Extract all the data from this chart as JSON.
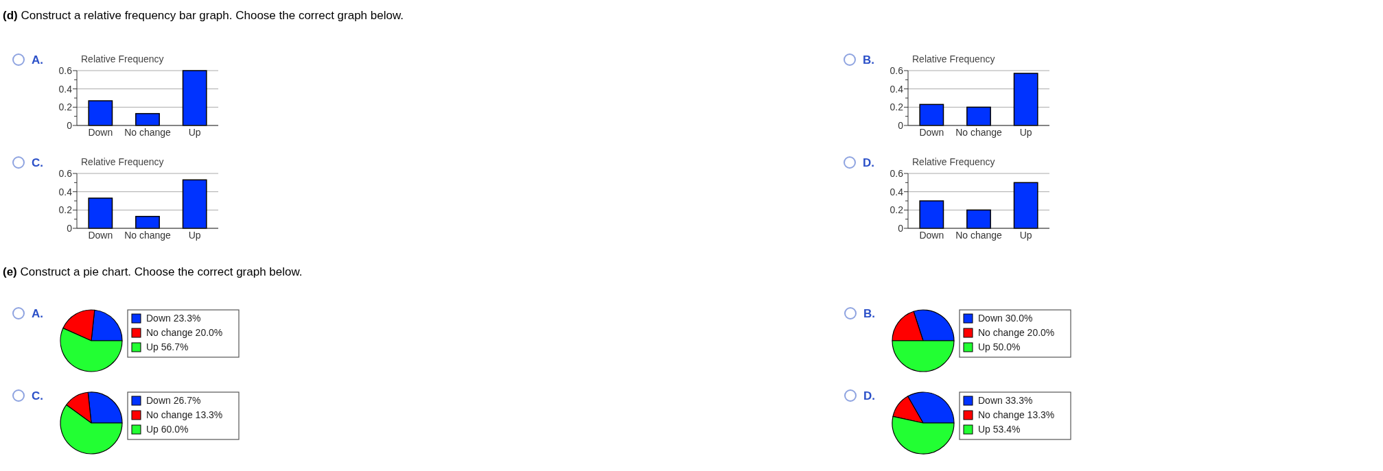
{
  "chart_data": [
    {
      "type": "other",
      "title": "(d) Construct a relative frequency bar graph. Choose the correct graph below."
    },
    {
      "type": "bar",
      "title": "Relative Frequency",
      "annotations": [
        "A."
      ],
      "categories": [
        "Down",
        "No change",
        "Up"
      ],
      "values": [
        0.27,
        0.13,
        0.6
      ],
      "color": "#0033ff",
      "ylim": [
        0,
        0.6
      ],
      "yticks": [
        0,
        {
          "value": 0.1,
          "label": null
        },
        0.2,
        {
          "value": 0.3,
          "label": null
        },
        0.4,
        {
          "value": 0.5,
          "label": null
        },
        0.6
      ],
      "grid": "y"
    },
    {
      "type": "bar",
      "title": "Relative Frequency",
      "annotations": [
        "B."
      ],
      "categories": [
        "Down",
        "No change",
        "Up"
      ],
      "values": [
        0.23,
        0.2,
        0.57
      ],
      "color": "#0033ff",
      "ylim": [
        0,
        0.6
      ],
      "yticks": [
        0,
        {
          "value": 0.1,
          "label": null
        },
        0.2,
        {
          "value": 0.3,
          "label": null
        },
        0.4,
        {
          "value": 0.5,
          "label": null
        },
        0.6
      ],
      "grid": "y"
    },
    {
      "type": "bar",
      "title": "Relative Frequency",
      "annotations": [
        "C."
      ],
      "categories": [
        "Down",
        "No change",
        "Up"
      ],
      "values": [
        0.33,
        0.13,
        0.53
      ],
      "color": "#0033ff",
      "ylim": [
        0,
        0.6
      ],
      "yticks": [
        0,
        {
          "value": 0.1,
          "label": null
        },
        0.2,
        {
          "value": 0.3,
          "label": null
        },
        0.4,
        {
          "value": 0.5,
          "label": null
        },
        0.6
      ],
      "grid": "y"
    },
    {
      "type": "bar",
      "title": "Relative Frequency",
      "annotations": [
        "D."
      ],
      "categories": [
        "Down",
        "No change",
        "Up"
      ],
      "values": [
        0.3,
        0.2,
        0.5
      ],
      "color": "#0033ff",
      "ylim": [
        0,
        0.6
      ],
      "yticks": [
        0,
        {
          "value": 0.1,
          "label": null
        },
        0.2,
        {
          "value": 0.3,
          "label": null
        },
        0.4,
        {
          "value": 0.5,
          "label": null
        },
        0.6
      ],
      "grid": "y"
    },
    {
      "type": "other",
      "title": "(e) Construct a pie chart. Choose the correct graph below."
    },
    {
      "type": "pie",
      "annotations": [
        "A."
      ],
      "categories": [
        "Down",
        "No change",
        "Up"
      ],
      "values": [
        23.3,
        20.0,
        56.7
      ],
      "value_labels": [
        "23.3%",
        "20.0%",
        "56.7%"
      ],
      "colors": [
        "#0033ff",
        "#ff0000",
        "#22ff33"
      ],
      "legend": "right"
    },
    {
      "type": "pie",
      "annotations": [
        "B."
      ],
      "categories": [
        "Down",
        "No change",
        "Up"
      ],
      "values": [
        30.0,
        20.0,
        50.0
      ],
      "value_labels": [
        "30.0%",
        "20.0%",
        "50.0%"
      ],
      "colors": [
        "#0033ff",
        "#ff0000",
        "#22ff33"
      ],
      "legend": "right"
    },
    {
      "type": "pie",
      "annotations": [
        "C."
      ],
      "categories": [
        "Down",
        "No change",
        "Up"
      ],
      "values": [
        26.7,
        13.3,
        60.0
      ],
      "value_labels": [
        "26.7%",
        "13.3%",
        "60.0%"
      ],
      "colors": [
        "#0033ff",
        "#ff0000",
        "#22ff33"
      ],
      "legend": "right"
    },
    {
      "type": "pie",
      "annotations": [
        "D."
      ],
      "categories": [
        "Down",
        "No change",
        "Up"
      ],
      "values": [
        33.3,
        13.3,
        53.4
      ],
      "value_labels": [
        "33.3%",
        "13.3%",
        "53.4%"
      ],
      "colors": [
        "#0033ff",
        "#ff0000",
        "#22ff33"
      ],
      "legend": "right"
    }
  ]
}
